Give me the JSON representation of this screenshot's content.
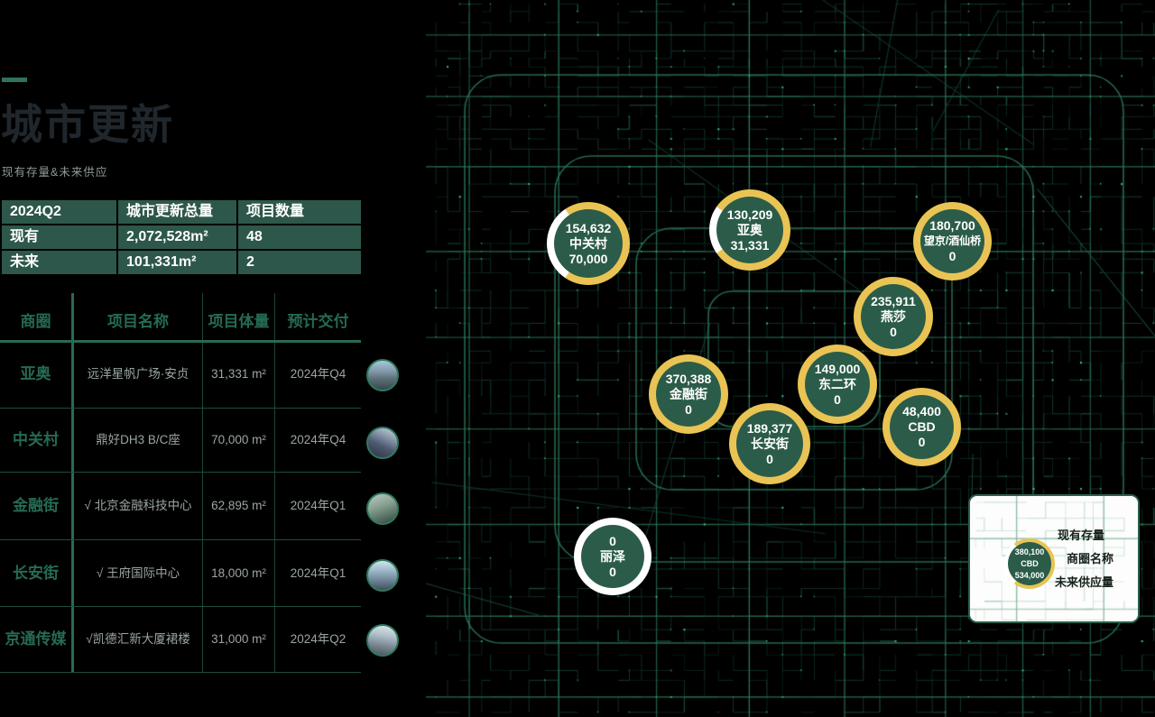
{
  "page": {
    "title": "城市更新",
    "subtitle": "现有存量&未来供应"
  },
  "summary_table": {
    "headers": [
      "2024Q2",
      "城市更新总量",
      "项目数量"
    ],
    "rows": [
      {
        "label": "现有",
        "total": "2,072,528m²",
        "count": "48"
      },
      {
        "label": "未来",
        "total": "101,331m²",
        "count": "2"
      }
    ]
  },
  "projects_table": {
    "headers": {
      "district": "商圈",
      "name": "项目名称",
      "volume": "项目体量",
      "delivery": "预计交付"
    },
    "rows": [
      {
        "district": "亚奥",
        "name": "远洋星帆广场·安贞",
        "volume": "31,331 m²",
        "delivery": "2024年Q4"
      },
      {
        "district": "中关村",
        "name": "鼎好DH3 B/C座",
        "volume": "70,000 m²",
        "delivery": "2024年Q4"
      },
      {
        "district": "金融街",
        "name": "√ 北京金融科技中心",
        "volume": "62,895 m²",
        "delivery": "2024年Q1"
      },
      {
        "district": "长安街",
        "name": "√ 王府国际中心",
        "volume": "18,000 m²",
        "delivery": "2024年Q1"
      },
      {
        "district": "京通传媒",
        "name": "√凯德汇新大厦裙楼",
        "volume": "31,000 m²",
        "delivery": "2024年Q2"
      }
    ]
  },
  "map": {
    "markers": [
      {
        "existing": "154,632",
        "district": "中关村",
        "future": "70,000"
      },
      {
        "existing": "130,209",
        "district": "亚奥",
        "future": "31,331"
      },
      {
        "existing": "180,700",
        "district": "望京/酒仙桥",
        "future": "0"
      },
      {
        "existing": "235,911",
        "district": "燕莎",
        "future": "0"
      },
      {
        "existing": "370,388",
        "district": "金融街",
        "future": "0"
      },
      {
        "existing": "149,000",
        "district": "东二环",
        "future": "0"
      },
      {
        "existing": "189,377",
        "district": "长安街",
        "future": "0"
      },
      {
        "existing": "48,400",
        "district": "CBD",
        "future": "0"
      },
      {
        "existing": "0",
        "district": "丽泽",
        "future": "0"
      }
    ],
    "legend": {
      "labels": {
        "existing": "现有存量",
        "district": "商圈名称",
        "future": "未来供应量"
      },
      "sample": {
        "existing": "380,100",
        "district": "CBD",
        "future": "534,000"
      }
    }
  },
  "colors": {
    "table_green": "#2d574a",
    "ring_yellow": "#e9c454",
    "ring_white": "#ffffff",
    "marker_fill": "#2b5c49",
    "map_road_green": "#1d5844",
    "bright_dot_green": "#40d778",
    "district_text_green": "#256b53",
    "accent_teal": "#2f7260"
  }
}
